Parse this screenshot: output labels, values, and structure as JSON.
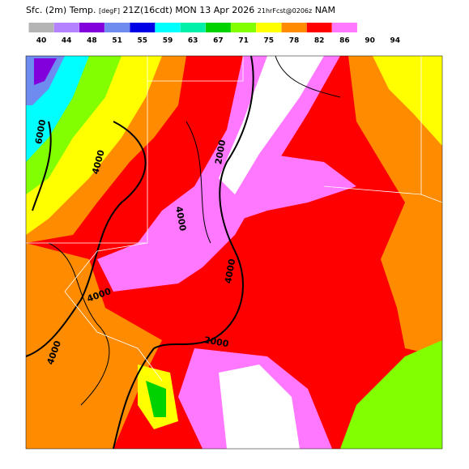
{
  "header": {
    "title_parts": [
      "Sfc. (2m) Temp.",
      "[degF]",
      "21Z(16cdt)",
      "MON 13 Apr 2026",
      "21hrFcst@0206z",
      "NAM"
    ]
  },
  "legend": {
    "labels": [
      "40",
      "44",
      "48",
      "51",
      "55",
      "59",
      "63",
      "67",
      "71",
      "75",
      "78",
      "82",
      "86",
      "90",
      "94"
    ],
    "colors": [
      "#b4b4b4",
      "#b482ff",
      "#8200dc",
      "#6e8cf0",
      "#0000e6",
      "#00ffff",
      "#00f0aa",
      "#00d200",
      "#82ff00",
      "#ffff00",
      "#ff8c00",
      "#ff0000",
      "#ff78ff",
      "#ffffff"
    ]
  },
  "contour_labels": [
    "6000",
    "4000",
    "2000",
    "4000",
    "4000",
    "2000",
    "4000",
    "4000"
  ]
}
